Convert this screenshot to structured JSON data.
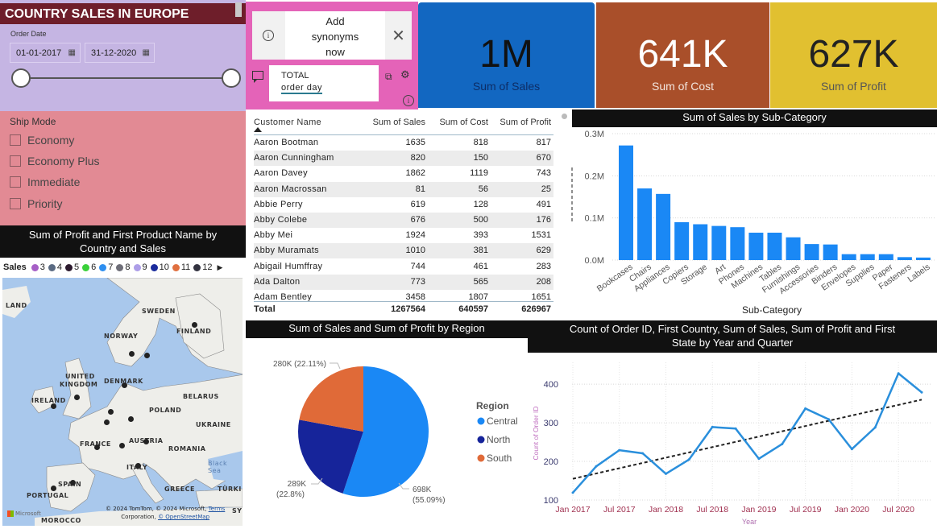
{
  "title_panel": {
    "title": "COUNTRY SALES IN EUROPE",
    "order_date_label": "Order Date",
    "start_date": "01-01-2017",
    "end_date": "31-12-2020"
  },
  "qa": {
    "prompt": "Add synonyms now",
    "prompt_lines": [
      "Add",
      "synonyms",
      "now"
    ],
    "input_line1": "TOTAL",
    "input_line2": "order day"
  },
  "kpis": {
    "sales": {
      "value": "1M",
      "label": "Sum of Sales",
      "color": "#1267c1"
    },
    "cost": {
      "value": "641K",
      "label": "Sum of Cost",
      "color": "#a94f2a"
    },
    "profit": {
      "value": "627K",
      "label": "Sum of Profit",
      "color": "#e1c030"
    }
  },
  "ship_mode": {
    "title": "Ship Mode",
    "options": [
      "Economy",
      "Economy Plus",
      "Immediate",
      "Priority"
    ]
  },
  "map": {
    "header": "Sum of Profit and First Product Name by Country and Sales",
    "header_lines": [
      "Sum of Profit and First Product Name by",
      "Country and Sales"
    ],
    "legend_title": "Sales",
    "legend": [
      {
        "label": "3",
        "color": "#a65fc6"
      },
      {
        "label": "4",
        "color": "#5a6a82"
      },
      {
        "label": "5",
        "color": "#2c1a2e"
      },
      {
        "label": "6",
        "color": "#3ad13a"
      },
      {
        "label": "7",
        "color": "#2e8ff0"
      },
      {
        "label": "8",
        "color": "#6e6e78"
      },
      {
        "label": "9",
        "color": "#ad9ee8"
      },
      {
        "label": "10",
        "color": "#1a2b9c"
      },
      {
        "label": "11",
        "color": "#e07040"
      },
      {
        "label": "12",
        "color": "#333340"
      }
    ],
    "labels": [
      "LAND",
      "SWEDEN",
      "FINLAND",
      "NORWAY",
      "DENMARK",
      "UNITED",
      "KINGDOM",
      "IRELAND",
      "BELARUS",
      "POLAND",
      "UKRAINE",
      "FRANCE",
      "AUSTRIA",
      "ROMANIA",
      "Black Sea",
      "ITALY",
      "SPAIN",
      "PORTUGAL",
      "GREECE",
      "TÜRKI",
      "MOROCCO",
      "SY"
    ],
    "copyright_line1": "© 2024 TomTom, © 2024 Microsoft",
    "terms": "Terms",
    "copyright_line2": "Corporation,",
    "osm": "© OpenStreetMap",
    "ms_logo": "Microsoft"
  },
  "table": {
    "columns": [
      "Customer Name",
      "Sum of Sales",
      "Sum of Cost",
      "Sum of Profit"
    ],
    "rows": [
      [
        "Aaron Bootman",
        "1635",
        "818",
        "817"
      ],
      [
        "Aaron Cunningham",
        "820",
        "150",
        "670"
      ],
      [
        "Aaron Davey",
        "1862",
        "1119",
        "743"
      ],
      [
        "Aaron Macrossan",
        "81",
        "56",
        "25"
      ],
      [
        "Abbie Perry",
        "619",
        "128",
        "491"
      ],
      [
        "Abby Colebe",
        "676",
        "500",
        "176"
      ],
      [
        "Abby Mei",
        "1924",
        "393",
        "1531"
      ],
      [
        "Abby Muramats",
        "1010",
        "381",
        "629"
      ],
      [
        "Abigail Humffray",
        "744",
        "461",
        "283"
      ],
      [
        "Ada Dalton",
        "773",
        "565",
        "208"
      ],
      [
        "Adam Bentley",
        "3458",
        "1807",
        "1651"
      ]
    ],
    "total": [
      "Total",
      "1267564",
      "640597",
      "626967"
    ]
  },
  "chart_data": [
    {
      "type": "bar",
      "title": "Sum of Sales by Sub-Category",
      "xlabel": "Sub-Category",
      "ylabel": "",
      "ylim": [
        0,
        0.3
      ],
      "yticks": [
        "0.0M",
        "0.1M",
        "0.2M",
        "0.3M"
      ],
      "grid": true,
      "color": "#1a88f5",
      "categories": [
        "Bookcases",
        "Chairs",
        "Appliances",
        "Copiers",
        "Storage",
        "Art",
        "Phones",
        "Machines",
        "Tables",
        "Furnishings",
        "Accessories",
        "Binders",
        "Envelopes",
        "Supplies",
        "Paper",
        "Fasteners",
        "Labels"
      ],
      "values_millions": [
        0.272,
        0.17,
        0.157,
        0.09,
        0.085,
        0.081,
        0.078,
        0.065,
        0.065,
        0.054,
        0.038,
        0.037,
        0.014,
        0.014,
        0.014,
        0.007,
        0.006
      ]
    },
    {
      "type": "pie",
      "title": "Sum of Sales and Sum of Profit by Region",
      "legend_title": "Region",
      "legend_position": "right",
      "slices": [
        {
          "label": "Central",
          "value": 698,
          "display": "698K",
          "percent": "(55.09%)",
          "pct": 55.09,
          "color": "#1a88f5"
        },
        {
          "label": "North",
          "value": 289,
          "display": "289K",
          "percent": "(22.8%)",
          "pct": 22.8,
          "color": "#16249a"
        },
        {
          "label": "South",
          "value": 280,
          "display": "280K",
          "percent": "(22.11%)",
          "pct": 22.11,
          "color": "#e06a38"
        }
      ]
    },
    {
      "type": "line",
      "title": "Count of Order ID, First Country, Sum of Sales, Sum of Profit and First State by Year and Quarter",
      "title_lines": [
        "Count of Order ID, First Country, Sum of Sales, Sum of Profit and First",
        "State by Year and Quarter"
      ],
      "xlabel": "Year",
      "ylabel": "Count of Order ID",
      "ylim": [
        100,
        440
      ],
      "yticks": [
        100,
        200,
        300,
        400
      ],
      "xticks": [
        "Jan 2017",
        "Jul 2017",
        "Jan 2018",
        "Jul 2018",
        "Jan 2019",
        "Jul 2019",
        "Jan 2020",
        "Jul 2020"
      ],
      "x": [
        "2017 Q1",
        "2017 Q2",
        "2017 Q3",
        "2017 Q4",
        "2018 Q1",
        "2018 Q2",
        "2018 Q3",
        "2018 Q4",
        "2019 Q1",
        "2019 Q2",
        "2019 Q3",
        "2019 Q4",
        "2020 Q1",
        "2020 Q2",
        "2020 Q3",
        "2020 Q4"
      ],
      "series": [
        {
          "name": "Count of Order ID",
          "color": "#2a8fdc",
          "values": [
            119,
            187,
            229,
            221,
            168,
            205,
            289,
            285,
            207,
            245,
            337,
            309,
            232,
            288,
            428,
            379
          ]
        }
      ],
      "trendline": {
        "start": 155,
        "end": 360,
        "color": "#222222"
      },
      "grid": true
    }
  ]
}
